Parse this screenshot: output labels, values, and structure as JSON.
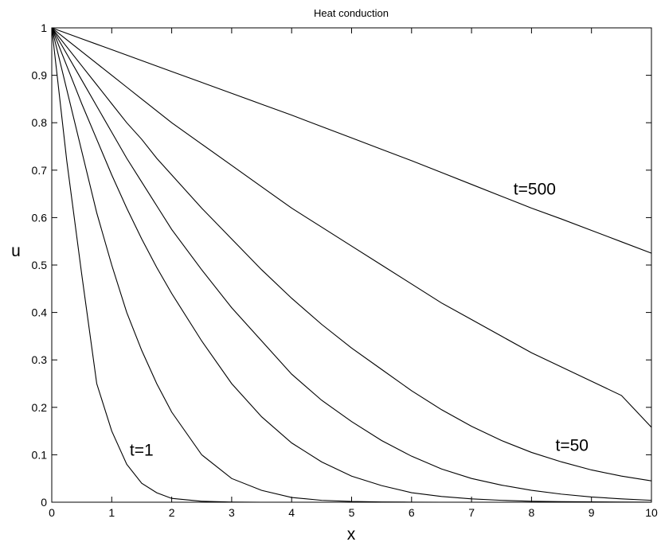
{
  "chart_data": {
    "type": "line",
    "title": "Heat conduction",
    "xlabel": "x",
    "ylabel": "u",
    "xlim": [
      0,
      10
    ],
    "ylim": [
      0,
      1
    ],
    "xticks": [
      "0",
      "1",
      "2",
      "3",
      "4",
      "5",
      "6",
      "7",
      "8",
      "9",
      "10"
    ],
    "yticks": [
      "0",
      "0.1",
      "0.2",
      "0.3",
      "0.4",
      "0.5",
      "0.6",
      "0.7",
      "0.8",
      "0.9",
      "1"
    ],
    "grid": false,
    "x": [
      0,
      0.25,
      0.5,
      0.75,
      1,
      1.25,
      1.5,
      1.75,
      2,
      2.5,
      3,
      3.5,
      4,
      4.5,
      5,
      5.5,
      6,
      6.5,
      7,
      7.5,
      8,
      8.5,
      9,
      9.5,
      10
    ],
    "series": [
      {
        "values": [
          1,
          0.72,
          0.48,
          0.25,
          0.15,
          0.08,
          0.04,
          0.02,
          0.008,
          0.002,
          0.0003,
          0,
          0,
          0,
          0,
          0,
          0,
          0,
          0,
          0,
          0,
          0,
          0,
          0,
          0
        ]
      },
      {
        "values": [
          1,
          0.87,
          0.74,
          0.61,
          0.5,
          0.4,
          0.32,
          0.25,
          0.19,
          0.1,
          0.05,
          0.025,
          0.01,
          0.004,
          0.0015,
          0.0005,
          0.0002,
          0,
          0,
          0,
          0,
          0,
          0,
          0,
          0
        ]
      },
      {
        "values": [
          1,
          0.92,
          0.84,
          0.765,
          0.69,
          0.62,
          0.555,
          0.495,
          0.44,
          0.34,
          0.25,
          0.18,
          0.125,
          0.085,
          0.055,
          0.035,
          0.02,
          0.012,
          0.007,
          0.004,
          0.002,
          0.0012,
          0.0007,
          0.0003,
          0.0002
        ]
      },
      {
        "values": [
          1,
          0.945,
          0.89,
          0.835,
          0.78,
          0.725,
          0.675,
          0.625,
          0.575,
          0.49,
          0.41,
          0.34,
          0.27,
          0.215,
          0.17,
          0.13,
          0.097,
          0.07,
          0.05,
          0.036,
          0.025,
          0.017,
          0.011,
          0.007,
          0.004
        ]
      },
      {
        "values": [
          1,
          0.96,
          0.92,
          0.88,
          0.84,
          0.8,
          0.765,
          0.725,
          0.69,
          0.62,
          0.555,
          0.49,
          0.43,
          0.375,
          0.325,
          0.28,
          0.235,
          0.195,
          0.16,
          0.13,
          0.105,
          0.085,
          0.068,
          0.055,
          0.045
        ]
      },
      {
        "values": [
          1,
          0.975,
          0.95,
          0.925,
          0.9,
          0.875,
          0.85,
          0.825,
          0.8,
          0.755,
          0.71,
          0.665,
          0.62,
          0.58,
          0.54,
          0.5,
          0.46,
          0.42,
          0.385,
          0.35,
          0.315,
          0.285,
          0.255,
          0.225,
          0.158
        ]
      },
      {
        "values": [
          1,
          0.9885,
          0.977,
          0.9655,
          0.954,
          0.9425,
          0.931,
          0.9195,
          0.908,
          0.885,
          0.862,
          0.839,
          0.816,
          0.792,
          0.768,
          0.744,
          0.72,
          0.695,
          0.67,
          0.645,
          0.62,
          0.597,
          0.573,
          0.549,
          0.525
        ]
      }
    ],
    "annotations": [
      {
        "text": "t=1",
        "x": 1.3,
        "y": 0.11
      },
      {
        "text": "t=50",
        "x": 8.4,
        "y": 0.12
      },
      {
        "text": "t=500",
        "x": 7.7,
        "y": 0.66
      }
    ]
  }
}
